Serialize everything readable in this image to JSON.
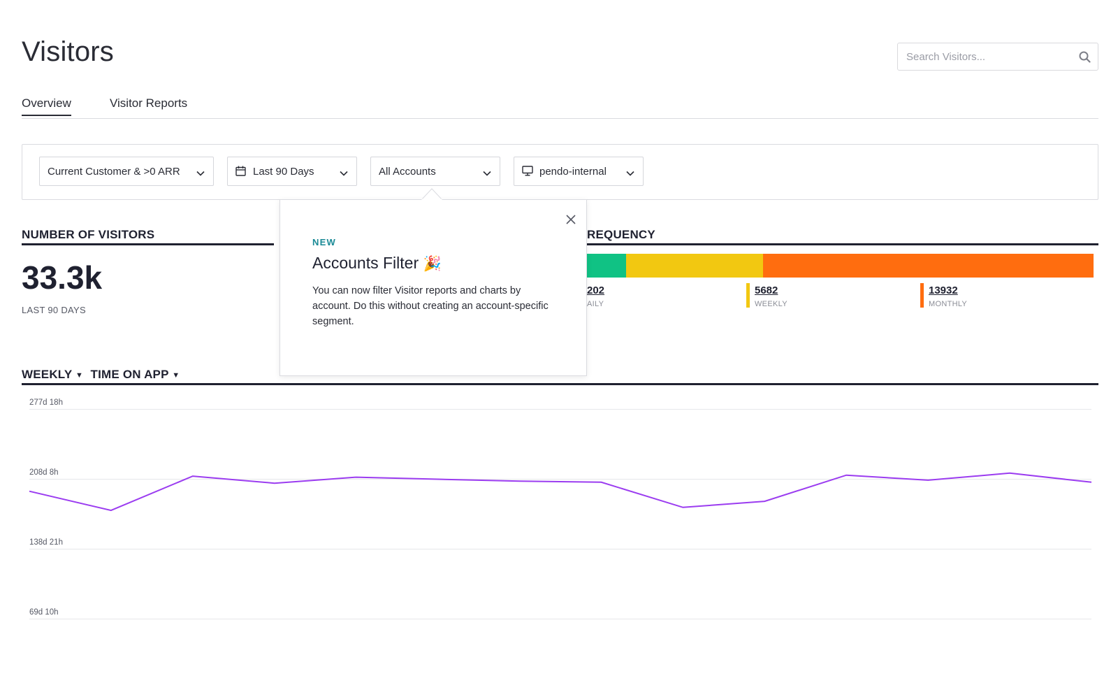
{
  "page": {
    "title": "Visitors"
  },
  "search": {
    "placeholder": "Search Visitors..."
  },
  "tabs": [
    {
      "label": "Overview",
      "active": true
    },
    {
      "label": "Visitor Reports",
      "active": false
    }
  ],
  "filters": {
    "segment": "Current Customer & >0 ARR",
    "date_range": "Last 90 Days",
    "accounts": "All Accounts",
    "app": "pendo-internal"
  },
  "number_of_visitors": {
    "heading": "NUMBER OF VISITORS",
    "value": "33.3k",
    "subtitle": "LAST 90 DAYS"
  },
  "frequency": {
    "heading": "REQUENCY",
    "items": [
      {
        "value": "202",
        "label": "AILY",
        "color": "#10c284"
      },
      {
        "value": "5682",
        "label": "WEEKLY",
        "color": "#f2c811"
      },
      {
        "value": "13932",
        "label": "MONTHLY",
        "color": "#ff6d0f"
      }
    ]
  },
  "popover": {
    "badge": "NEW",
    "title": "Accounts Filter",
    "emoji": "🎉",
    "body": "You can now filter Visitor reports and charts by account. Do this without creating an account-specific segment."
  },
  "time_chart": {
    "interval": "WEEKLY",
    "metric": "TIME ON APP"
  },
  "colors": {
    "line": "#9b3cf0",
    "text": "#1f2130"
  },
  "chart_data": {
    "type": "line",
    "xlabel": "",
    "ylabel": "",
    "y_ticks": [
      "277d 18h",
      "208d 8h",
      "138d 21h",
      "69d 10h"
    ],
    "ylim_days": [
      0,
      277.75
    ],
    "series": [
      {
        "values_days": [
          196,
          177,
          211,
          204,
          210,
          208,
          206,
          205,
          180,
          186,
          212,
          207,
          214,
          205
        ]
      }
    ]
  }
}
